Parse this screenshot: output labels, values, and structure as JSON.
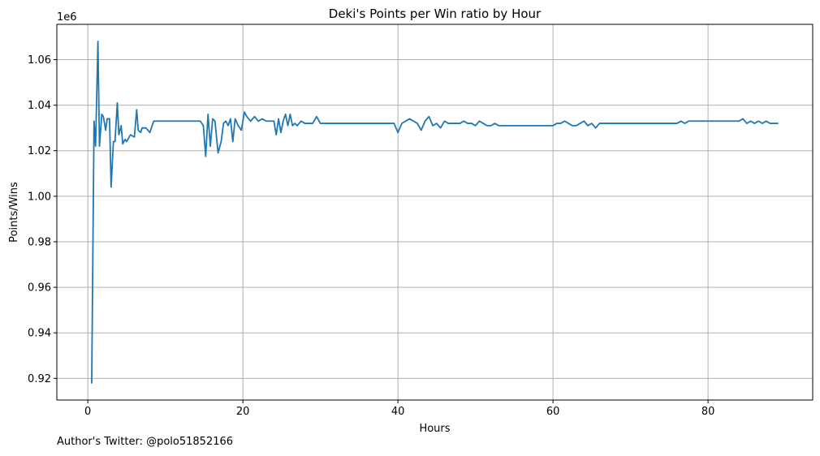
{
  "chart_data": {
    "type": "line",
    "title": "Deki's Points per Win ratio by Hour",
    "xlabel": "Hours",
    "ylabel": "Points/Wins",
    "y_offset_label": "1e6",
    "y_scale": 1000000,
    "xlim": [
      -4.0,
      93.5
    ],
    "ylim": [
      0.9105,
      1.0755
    ],
    "x_ticks": [
      0,
      20,
      40,
      60,
      80
    ],
    "x_tick_labels": [
      "0",
      "20",
      "40",
      "60",
      "80"
    ],
    "y_ticks": [
      0.92,
      0.94,
      0.96,
      0.98,
      1.0,
      1.02,
      1.04,
      1.06
    ],
    "y_tick_labels": [
      "0.92",
      "0.94",
      "0.96",
      "0.98",
      "1.00",
      "1.02",
      "1.04",
      "1.06"
    ],
    "grid": true,
    "line_color": "#1f77b4",
    "series": [
      {
        "x": [
          0.5,
          0.8,
          1.0,
          1.3,
          1.5,
          1.8,
          2.0,
          2.3,
          2.5,
          2.8,
          3.0,
          3.3,
          3.5,
          3.8,
          4.0,
          4.3,
          4.5,
          4.8,
          5.0,
          5.5,
          6.0,
          6.3,
          6.5,
          6.8,
          7.0,
          7.5,
          8.0,
          8.5,
          9.0,
          9.5,
          14.5,
          14.9,
          15.2,
          15.5,
          15.8,
          16.1,
          16.4,
          16.8,
          17.2,
          17.5,
          17.8,
          18.1,
          18.4,
          18.7,
          19.0,
          19.4,
          19.8,
          20.2,
          20.5,
          21.0,
          21.5,
          22.0,
          22.5,
          23.0,
          23.5,
          24.0,
          24.3,
          24.6,
          24.9,
          25.2,
          25.5,
          25.8,
          26.1,
          26.4,
          26.7,
          27.0,
          27.5,
          28.0,
          28.5,
          29.0,
          29.5,
          30.0,
          30.5,
          39.0,
          39.5,
          40.0,
          40.5,
          41.0,
          41.5,
          42.0,
          42.5,
          43.0,
          43.5,
          44.0,
          44.5,
          45.0,
          45.5,
          46.0,
          46.5,
          47.0,
          47.5,
          48.0,
          48.5,
          49.0,
          49.5,
          50.0,
          50.5,
          51.0,
          51.5,
          52.0,
          52.5,
          53.0,
          60.0,
          60.5,
          61.0,
          61.5,
          62.0,
          62.5,
          63.0,
          63.5,
          64.0,
          64.5,
          65.0,
          65.5,
          66.0,
          66.5,
          67.0,
          75.0,
          75.5,
          76.0,
          76.5,
          77.0,
          77.5,
          78.0,
          78.5,
          79.0,
          84.0,
          84.5,
          85.0,
          85.5,
          86.0,
          86.5,
          87.0,
          87.5,
          88.0,
          88.5,
          89.0
        ],
        "y": [
          0.918,
          1.033,
          1.022,
          1.068,
          1.022,
          1.036,
          1.035,
          1.029,
          1.034,
          1.034,
          1.004,
          1.024,
          1.024,
          1.041,
          1.027,
          1.031,
          1.023,
          1.025,
          1.024,
          1.027,
          1.026,
          1.038,
          1.029,
          1.028,
          1.03,
          1.03,
          1.028,
          1.033,
          1.033,
          1.033,
          1.033,
          1.031,
          1.0175,
          1.036,
          1.022,
          1.034,
          1.033,
          1.019,
          1.024,
          1.032,
          1.033,
          1.031,
          1.034,
          1.024,
          1.034,
          1.031,
          1.029,
          1.037,
          1.035,
          1.033,
          1.035,
          1.033,
          1.034,
          1.033,
          1.033,
          1.033,
          1.027,
          1.034,
          1.028,
          1.033,
          1.036,
          1.031,
          1.036,
          1.031,
          1.032,
          1.031,
          1.033,
          1.032,
          1.032,
          1.032,
          1.035,
          1.032,
          1.032,
          1.032,
          1.032,
          1.028,
          1.032,
          1.033,
          1.034,
          1.033,
          1.032,
          1.029,
          1.033,
          1.035,
          1.031,
          1.032,
          1.03,
          1.033,
          1.032,
          1.032,
          1.032,
          1.032,
          1.033,
          1.032,
          1.032,
          1.031,
          1.033,
          1.032,
          1.031,
          1.031,
          1.032,
          1.031,
          1.031,
          1.032,
          1.032,
          1.033,
          1.032,
          1.031,
          1.031,
          1.032,
          1.033,
          1.031,
          1.032,
          1.03,
          1.032,
          1.032,
          1.032,
          1.032,
          1.032,
          1.032,
          1.033,
          1.032,
          1.033,
          1.033,
          1.033,
          1.033,
          1.033,
          1.034,
          1.032,
          1.033,
          1.032,
          1.033,
          1.032,
          1.033,
          1.032,
          1.032,
          1.032
        ]
      }
    ]
  },
  "footer": {
    "author_text": "Author's Twitter: @polo51852166"
  }
}
